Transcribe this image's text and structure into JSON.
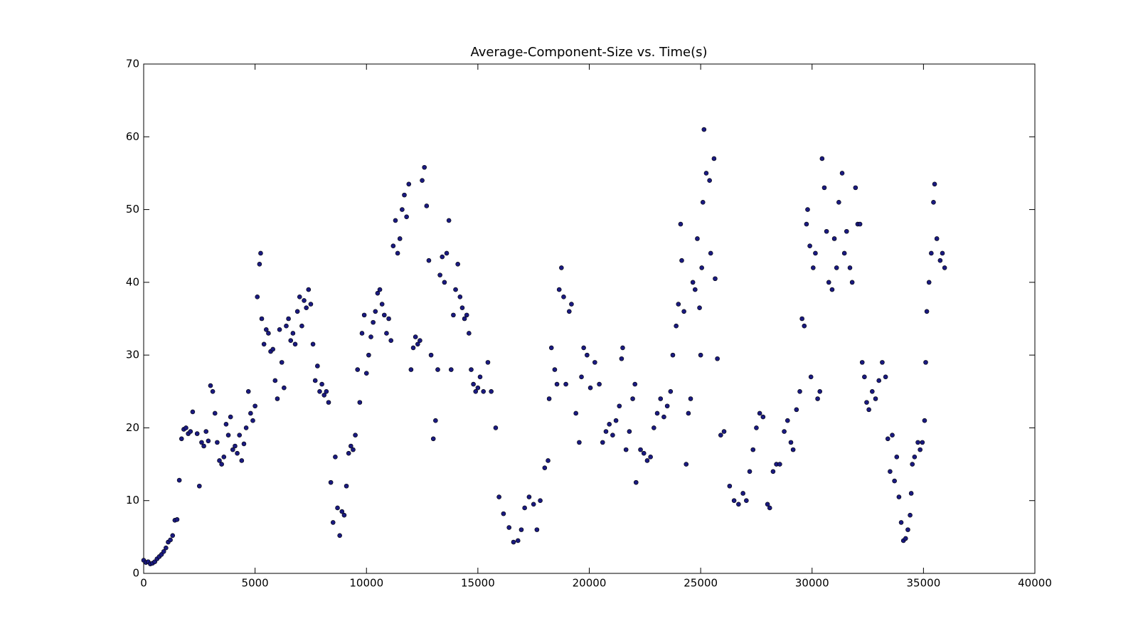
{
  "chart_data": {
    "type": "scatter",
    "title": "Average-Component-Size vs. Time(s)",
    "color": "#1a1a80",
    "edgecolor": "#000000",
    "grid": false,
    "xlim": [
      0,
      40000
    ],
    "xticks": [
      0,
      5000,
      10000,
      15000,
      20000,
      25000,
      30000,
      35000,
      40000
    ],
    "ylim": [
      0,
      70
    ],
    "yticks": [
      0,
      10,
      20,
      30,
      40,
      50,
      60,
      70
    ],
    "x": [
      0,
      100,
      200,
      300,
      400,
      500,
      600,
      700,
      800,
      900,
      1000,
      1100,
      1200,
      1300,
      1400,
      1500,
      1600,
      1700,
      1800,
      1900,
      2000,
      2100,
      2200,
      2400,
      2500,
      2600,
      2700,
      2800,
      2900,
      3000,
      3100,
      3200,
      3300,
      3400,
      3500,
      3600,
      3700,
      3800,
      3900,
      4000,
      4100,
      4200,
      4300,
      4400,
      4500,
      4600,
      4700,
      4800,
      4900,
      5000,
      5100,
      5200,
      5250,
      5300,
      5400,
      5500,
      5600,
      5700,
      5800,
      5900,
      6000,
      6100,
      6200,
      6300,
      6400,
      6500,
      6600,
      6700,
      6800,
      6900,
      7000,
      7100,
      7200,
      7300,
      7400,
      7500,
      7600,
      7700,
      7800,
      7900,
      8000,
      8100,
      8200,
      8300,
      8400,
      8500,
      8600,
      8700,
      8800,
      8900,
      9000,
      9100,
      9200,
      9300,
      9400,
      9500,
      9600,
      9700,
      9800,
      9900,
      10000,
      10100,
      10200,
      10300,
      10400,
      10500,
      10600,
      10700,
      10800,
      10900,
      11000,
      11100,
      11200,
      11300,
      11400,
      11500,
      11600,
      11700,
      11800,
      11900,
      12000,
      12100,
      12200,
      12300,
      12400,
      12500,
      12600,
      12700,
      12800,
      12900,
      13000,
      13100,
      13200,
      13300,
      13400,
      13500,
      13600,
      13700,
      13800,
      13900,
      14000,
      14100,
      14200,
      14300,
      14400,
      14500,
      14600,
      14700,
      14800,
      14900,
      15000,
      15100,
      15250,
      15450,
      15600,
      15800,
      15950,
      16150,
      16400,
      16600,
      16800,
      16950,
      17100,
      17300,
      17500,
      17650,
      17800,
      18000,
      18150,
      18200,
      18300,
      18450,
      18550,
      18650,
      18750,
      18850,
      18950,
      19100,
      19200,
      19400,
      19550,
      19650,
      19750,
      19900,
      20050,
      20250,
      20450,
      20600,
      20750,
      20900,
      21050,
      21200,
      21350,
      21450,
      21500,
      21650,
      21800,
      21950,
      22050,
      22100,
      22300,
      22450,
      22600,
      22750,
      22900,
      23050,
      23200,
      23350,
      23500,
      23650,
      23750,
      23900,
      24000,
      24100,
      24150,
      24250,
      24350,
      24450,
      24550,
      24650,
      24750,
      24850,
      24950,
      25000,
      25050,
      25100,
      25150,
      25250,
      25400,
      25450,
      25600,
      25650,
      25750,
      25900,
      26050,
      26300,
      26500,
      26700,
      26900,
      27050,
      27200,
      27350,
      27500,
      27650,
      27800,
      28000,
      28100,
      28250,
      28400,
      28550,
      28750,
      28900,
      29050,
      29150,
      29300,
      29450,
      29550,
      29650,
      29750,
      29800,
      29900,
      29950,
      30050,
      30150,
      30250,
      30350,
      30450,
      30550,
      30650,
      30750,
      30900,
      31000,
      31100,
      31200,
      31350,
      31450,
      31550,
      31700,
      31800,
      31950,
      32050,
      32150,
      32250,
      32350,
      32450,
      32550,
      32700,
      32850,
      33000,
      33150,
      33300,
      33400,
      33500,
      33600,
      33700,
      33800,
      33900,
      34000,
      34100,
      34200,
      34300,
      34400,
      34450,
      34500,
      34600,
      34750,
      34850,
      34950,
      35050,
      35100,
      35150,
      35250,
      35350,
      35450,
      35500,
      35600,
      35750,
      35850,
      35950
    ],
    "values": [
      1.8,
      1.5,
      1.6,
      1.3,
      1.4,
      1.6,
      2.0,
      2.3,
      2.6,
      3.0,
      3.5,
      4.3,
      4.6,
      5.2,
      7.3,
      7.4,
      12.8,
      18.5,
      19.8,
      20.0,
      19.2,
      19.5,
      22.2,
      19.2,
      12.0,
      18.0,
      17.5,
      19.5,
      18.2,
      25.8,
      25.0,
      22.0,
      18.0,
      15.5,
      15.0,
      16.0,
      20.5,
      19.0,
      21.5,
      17.0,
      17.5,
      16.5,
      19.0,
      15.5,
      17.8,
      20.0,
      25.0,
      22.0,
      21.0,
      23.0,
      38.0,
      42.5,
      44.0,
      35.0,
      31.5,
      33.5,
      33.0,
      30.5,
      30.8,
      26.5,
      24.0,
      33.5,
      29.0,
      25.5,
      34.0,
      35.0,
      32.0,
      33.0,
      31.5,
      36.0,
      38.0,
      34.0,
      37.5,
      36.5,
      39.0,
      37.0,
      31.5,
      26.5,
      28.5,
      25.0,
      26.0,
      24.5,
      25.0,
      23.5,
      12.5,
      7.0,
      16.0,
      9.0,
      5.2,
      8.5,
      8.0,
      12.0,
      16.5,
      17.5,
      17.0,
      19.0,
      28.0,
      23.5,
      33.0,
      35.5,
      27.5,
      30.0,
      32.5,
      34.5,
      36.0,
      38.5,
      39.0,
      37.0,
      35.5,
      33.0,
      35.0,
      32.0,
      45.0,
      48.5,
      44.0,
      46.0,
      50.0,
      52.0,
      49.0,
      53.5,
      28.0,
      31.0,
      32.5,
      31.5,
      32.0,
      54.0,
      55.8,
      50.5,
      43.0,
      30.0,
      18.5,
      21.0,
      28.0,
      41.0,
      43.5,
      40.0,
      44.0,
      48.5,
      28.0,
      35.5,
      39.0,
      42.5,
      38.0,
      36.5,
      35.0,
      35.5,
      33.0,
      28.0,
      26.0,
      25.0,
      25.5,
      27,
      25,
      29,
      25,
      20,
      10.5,
      8.2,
      6.3,
      4.3,
      4.5,
      6,
      9,
      10.5,
      9.5,
      6,
      10,
      14.5,
      15.5,
      24,
      31,
      28,
      26,
      39,
      42,
      38,
      26,
      36,
      37,
      22,
      18,
      27,
      31,
      30,
      25.5,
      29,
      26,
      18,
      19.5,
      20.5,
      19,
      21,
      23,
      29.5,
      31,
      17,
      19.5,
      24,
      26,
      12.5,
      17,
      16.5,
      15.5,
      16,
      20,
      22,
      24,
      21.5,
      23,
      25,
      30,
      34,
      37,
      48,
      43,
      36,
      15,
      22,
      24,
      40,
      39,
      46,
      36.5,
      30,
      42,
      51,
      61,
      55,
      54,
      44,
      57,
      40.5,
      29.5,
      19,
      19.5,
      12,
      10,
      9.5,
      11,
      10,
      14,
      17,
      20,
      22,
      21.5,
      9.5,
      9,
      14,
      15,
      15,
      19.5,
      21,
      18,
      17,
      22.5,
      25,
      35,
      34,
      48,
      50,
      45,
      27,
      42,
      44,
      24,
      25,
      57,
      53,
      47,
      40,
      39,
      46,
      42,
      51,
      55,
      44,
      47,
      42,
      40,
      53,
      48,
      48,
      29,
      27,
      23.5,
      22.5,
      25,
      24,
      26.5,
      29,
      27,
      18.5,
      14,
      19,
      12.7,
      16,
      10.5,
      7,
      4.5,
      4.8,
      6,
      8,
      11,
      15,
      16,
      18,
      17,
      18,
      21,
      29,
      36,
      40,
      44,
      51,
      53.5,
      46,
      43,
      44,
      42
    ]
  }
}
